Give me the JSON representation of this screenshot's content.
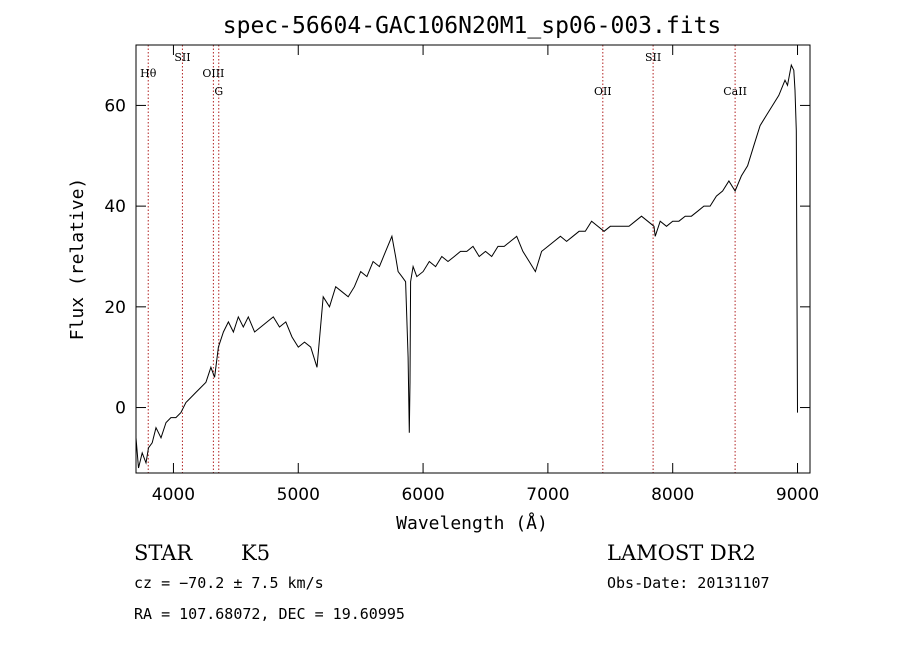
{
  "chart_data": {
    "type": "line",
    "title": "spec-56604-GAC106N20M1_sp06-003.fits",
    "xlabel": "Wavelength (Å)",
    "ylabel": "Flux (relative)",
    "xlim": [
      3700,
      9100
    ],
    "ylim": [
      -13,
      72
    ],
    "x_ticks": [
      4000,
      5000,
      6000,
      7000,
      8000,
      9000
    ],
    "y_ticks": [
      0,
      20,
      40,
      60
    ],
    "grid": false,
    "series": [
      {
        "x": [
          3700,
          3720,
          3750,
          3780,
          3800,
          3830,
          3860,
          3900,
          3940,
          3980,
          4020,
          4060,
          4100,
          4140,
          4180,
          4220,
          4260,
          4300,
          4330,
          4360,
          4400,
          4440,
          4480,
          4520,
          4560,
          4600,
          4650,
          4700,
          4750,
          4800,
          4850,
          4900,
          4950,
          5000,
          5050,
          5100,
          5150,
          5200,
          5250,
          5300,
          5350,
          5400,
          5450,
          5500,
          5550,
          5600,
          5650,
          5700,
          5750,
          5780,
          5800,
          5830,
          5860,
          5880,
          5890,
          5895,
          5900,
          5920,
          5950,
          6000,
          6050,
          6100,
          6150,
          6200,
          6250,
          6300,
          6350,
          6400,
          6450,
          6500,
          6550,
          6600,
          6650,
          6700,
          6750,
          6800,
          6850,
          6900,
          6950,
          7000,
          7050,
          7100,
          7150,
          7200,
          7250,
          7300,
          7350,
          7400,
          7450,
          7500,
          7550,
          7600,
          7650,
          7700,
          7750,
          7800,
          7850,
          7860,
          7900,
          7950,
          8000,
          8050,
          8100,
          8150,
          8200,
          8250,
          8300,
          8350,
          8400,
          8450,
          8500,
          8550,
          8600,
          8650,
          8700,
          8750,
          8800,
          8850,
          8900,
          8920,
          8950,
          8970,
          8980,
          8990,
          9000
        ],
        "y": [
          -6,
          -12,
          -9,
          -11,
          -8,
          -7,
          -4,
          -6,
          -3,
          -2,
          -2,
          -1,
          1,
          2,
          3,
          4,
          5,
          8,
          6,
          12,
          15,
          17,
          15,
          18,
          16,
          18,
          15,
          16,
          17,
          18,
          16,
          17,
          14,
          12,
          13,
          12,
          8,
          22,
          20,
          24,
          23,
          22,
          24,
          27,
          26,
          29,
          28,
          31,
          34,
          30,
          27,
          26,
          25,
          10,
          -5,
          5,
          25,
          28,
          26,
          27,
          29,
          28,
          30,
          29,
          30,
          31,
          31,
          32,
          30,
          31,
          30,
          32,
          32,
          33,
          34,
          31,
          29,
          27,
          31,
          32,
          33,
          34,
          33,
          34,
          35,
          35,
          37,
          36,
          35,
          36,
          36,
          36,
          36,
          37,
          38,
          37,
          36,
          34,
          37,
          36,
          37,
          37,
          38,
          38,
          39,
          40,
          40,
          42,
          43,
          45,
          43,
          46,
          48,
          52,
          56,
          58,
          60,
          62,
          65,
          64,
          68,
          67,
          63,
          55,
          -1
        ]
      }
    ],
    "line_markers": [
      {
        "label": "Hθ",
        "x": 3798,
        "row": 1
      },
      {
        "label": "SII",
        "x": 4072,
        "row": 0
      },
      {
        "label": "OIII",
        "x": 4320,
        "row": 1
      },
      {
        "label": "G",
        "x": 4363,
        "row": 2
      },
      {
        "label": "OII",
        "x": 7440,
        "row": 2
      },
      {
        "label": "SII",
        "x": 7843,
        "row": 0
      },
      {
        "label": "CaII",
        "x": 8500,
        "row": 2
      }
    ],
    "marker_color": "#b22222"
  },
  "info": {
    "object_class": "STAR",
    "subclass": "K5",
    "survey": "LAMOST DR2",
    "cz": "cz = −70.2 ± 7.5 km/s",
    "obs_date": "Obs-Date: 20131107",
    "coords": "RA = 107.68072, DEC =  19.60995"
  }
}
